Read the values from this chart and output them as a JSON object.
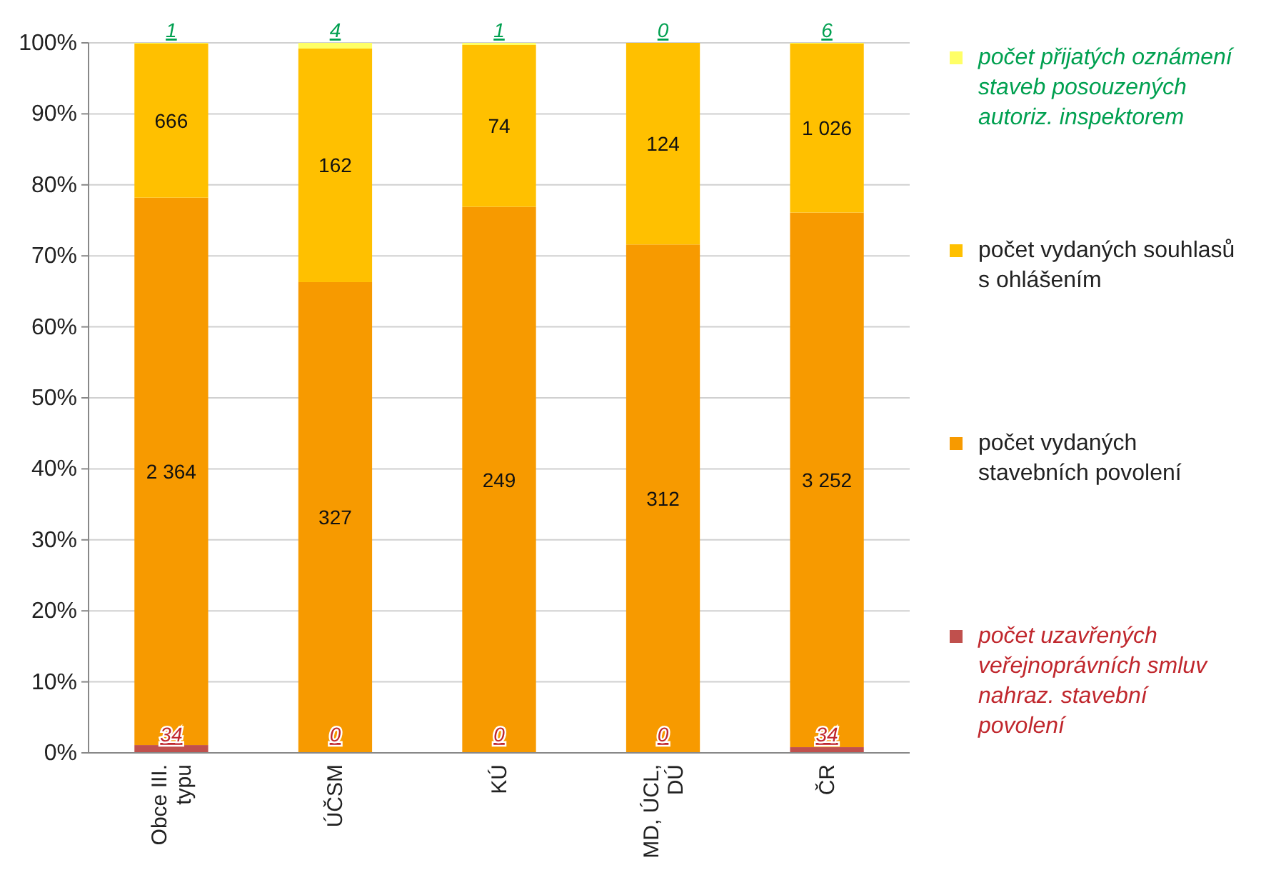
{
  "chart_data": {
    "type": "bar",
    "stacked": true,
    "categories": [
      "Obce III. typu",
      "ÚČSM",
      "KÚ",
      "MD, ÚCL, DÚ",
      "ČR"
    ],
    "series": [
      {
        "name": "počet uzavřených veřejnoprávních smluv nahraz. stavební povolení",
        "color": "#c0504d",
        "values": [
          1.1,
          0,
          0,
          0,
          0.8
        ]
      },
      {
        "name": "počet vydaných stavebních povolení",
        "color": "#f79a00",
        "values": [
          77.1,
          66.3,
          76.9,
          71.6,
          75.3
        ]
      },
      {
        "name": "počet vydaných souhlasů s ohlášením",
        "color": "#ffc000",
        "values": [
          21.7,
          32.9,
          22.8,
          28.4,
          23.8
        ]
      },
      {
        "name": "počet přijatých oznámení staveb posouzených autoriz. inspektorem",
        "color": "#ffff66",
        "values": [
          0.1,
          0.8,
          0.3,
          0,
          0.1
        ]
      }
    ],
    "annotations": [
      {
        "text": "34",
        "x": "Obce III. typu",
        "y": 0
      },
      {
        "text": "0",
        "x": "ÚČSM",
        "y": 0
      },
      {
        "text": "0",
        "x": "KÚ",
        "y": 0
      },
      {
        "text": "0",
        "x": "MD, ÚCL, DÚ",
        "y": 0
      },
      {
        "text": "34",
        "x": "ČR",
        "y": 0
      },
      "2 364",
      "327",
      "249",
      "312",
      "3 252",
      "666",
      "162",
      "74",
      "124",
      "1 026",
      {
        "text": "1",
        "x": "Obce III. typu",
        "y": 100
      },
      {
        "text": "4",
        "x": "ÚČSM",
        "y": 100
      },
      {
        "text": "1",
        "x": "KÚ",
        "y": 100
      },
      {
        "text": "0",
        "x": "MD, ÚCL, DÚ",
        "y": 100
      },
      {
        "text": "6",
        "x": "ČR",
        "y": 100
      }
    ],
    "ylim": [
      0,
      100
    ],
    "yticks": [
      {
        "value": 0,
        "label": "0%"
      },
      {
        "value": 10,
        "label": "10%"
      },
      {
        "value": 20,
        "label": "20%"
      },
      {
        "value": 30,
        "label": "30%"
      },
      {
        "value": 40,
        "label": "40%"
      },
      {
        "value": 50,
        "label": "50%"
      },
      {
        "value": 60,
        "label": "60%"
      },
      {
        "value": 70,
        "label": "70%"
      },
      {
        "value": 80,
        "label": "80%"
      },
      {
        "value": 90,
        "label": "90%"
      },
      {
        "value": 100,
        "label": "100%"
      }
    ],
    "grid": "y",
    "legend": "right"
  }
}
